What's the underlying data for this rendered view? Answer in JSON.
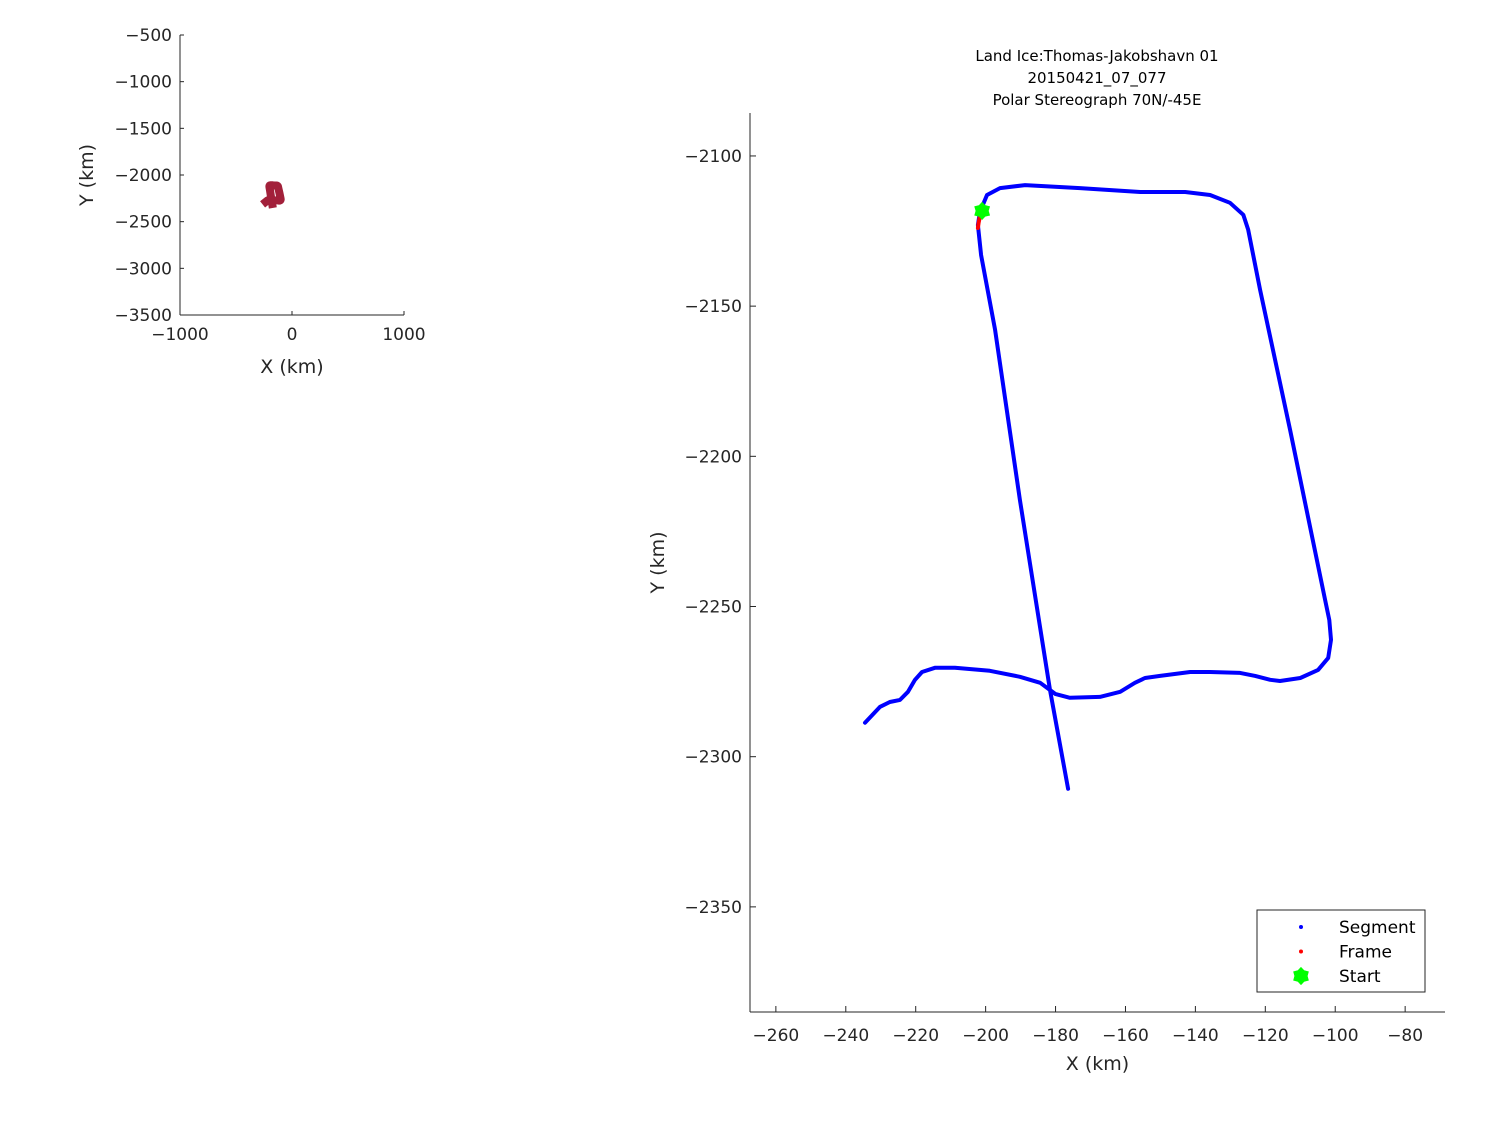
{
  "chart_data": [
    {
      "type": "line",
      "xlabel": "X (km)",
      "ylabel": "Y (km)",
      "xlim": [
        -1000,
        1000
      ],
      "ylim": [
        -3500,
        -500
      ],
      "xticks": [
        -1000,
        0,
        1000
      ],
      "yticks": [
        -3500,
        -3000,
        -2500,
        -2000,
        -1500,
        -1000,
        -500
      ],
      "grid": false,
      "series": [
        {
          "color": "#A2203A",
          "uses_track": "segment"
        }
      ]
    },
    {
      "type": "line",
      "title": [
        "Land Ice:Thomas-Jakobshavn 01",
        "20150421_07_077",
        "Polar Stereograph 70N/-45E"
      ],
      "xlabel": "X (km)",
      "ylabel": "Y (km)",
      "xlim": [
        -267.4,
        -68.6
      ],
      "ylim": [
        -2385,
        -2085.7
      ],
      "xticks": [
        -260,
        -240,
        -220,
        -200,
        -180,
        -160,
        -140,
        -120,
        -100,
        -80
      ],
      "yticks": [
        -2350,
        -2300,
        -2250,
        -2200,
        -2150,
        -2100
      ],
      "grid": false,
      "legend": {
        "placement": "bottom-right",
        "entries": [
          "Segment",
          "Frame",
          "Start"
        ]
      },
      "series": [
        {
          "name": "Segment",
          "color": "#0000FF",
          "x": [
            -176.4,
            -181.6,
            -190.2,
            -197.3,
            -201.3,
            -202.2,
            -201.6,
            -199.6,
            -195.9,
            -188.7,
            -173.0,
            -155.8,
            -142.9,
            -135.8,
            -130.1,
            -126.3,
            -124.9,
            -121.5,
            -112.9,
            -102.9,
            -101.7,
            -101.2,
            -102.0,
            -104.9,
            -110.0,
            -115.8,
            -118.6,
            -122.9,
            -127.2,
            -135.8,
            -141.5,
            -150.1,
            -154.4,
            -157.3,
            -161.5,
            -167.3,
            -175.9,
            -180.1,
            -181.6,
            -184.4,
            -190.2,
            -198.8,
            -208.8,
            -214.5,
            -218.2,
            -220.2,
            -222.2,
            -224.5,
            -227.4,
            -230.2,
            -234.5
          ],
          "y": [
            -2310.7,
            -2277.8,
            -2214.5,
            -2157.9,
            -2133.0,
            -2123.0,
            -2118.6,
            -2113.0,
            -2110.7,
            -2109.7,
            -2110.7,
            -2112.0,
            -2112.0,
            -2113.0,
            -2115.6,
            -2119.6,
            -2124.6,
            -2144.6,
            -2191.2,
            -2247.8,
            -2254.5,
            -2261.1,
            -2267.1,
            -2271.1,
            -2273.8,
            -2274.8,
            -2274.4,
            -2273.1,
            -2272.1,
            -2271.8,
            -2271.8,
            -2273.1,
            -2273.8,
            -2275.4,
            -2278.4,
            -2280.1,
            -2280.4,
            -2279.1,
            -2277.8,
            -2275.4,
            -2273.4,
            -2271.4,
            -2270.4,
            -2270.4,
            -2271.8,
            -2274.4,
            -2278.4,
            -2281.1,
            -2281.8,
            -2283.4,
            -2288.7
          ]
        },
        {
          "name": "Frame",
          "color": "#FF0000",
          "x": [
            -201.7,
            -202.0,
            -202.2
          ],
          "y": [
            -2120.5,
            -2122.3,
            -2124.0
          ]
        },
        {
          "name": "Start",
          "color": "#00FF00",
          "marker": "hexagram",
          "x": [
            -201.0
          ],
          "y": [
            -2118.3
          ]
        }
      ]
    }
  ]
}
